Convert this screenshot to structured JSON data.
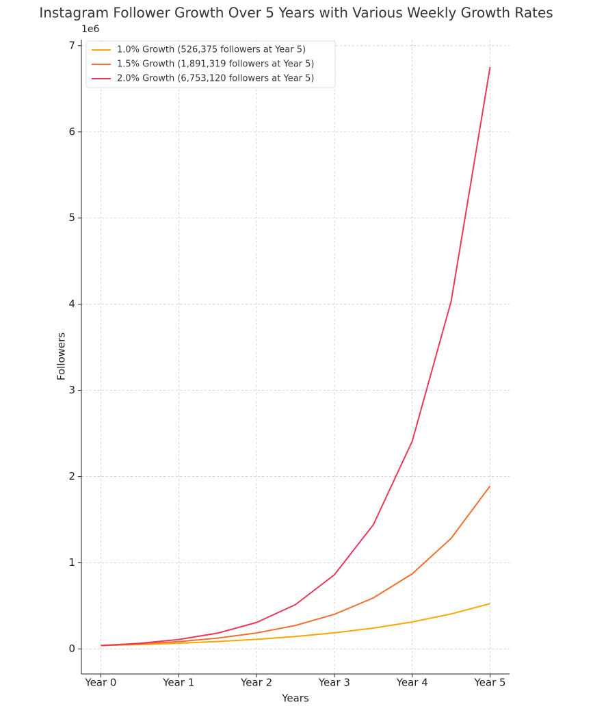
{
  "chart_data": {
    "type": "line",
    "title": "Instagram Follower Growth Over 5 Years with Various Weekly Growth Rates",
    "x_label": "Years",
    "y_label": "Followers",
    "y_offset_label": "1e6",
    "x": [
      0,
      0.5,
      1,
      1.5,
      2,
      2.5,
      3,
      3.5,
      4,
      4.5,
      5
    ],
    "series": [
      {
        "name": "1.0% Growth (526,375 followers at Year 5)",
        "color": "#ffa500",
        "values": [
          39600,
          51300,
          66400,
          86000,
          111500,
          144400,
          187000,
          242200,
          313700,
          406400,
          526375
        ]
      },
      {
        "name": "1.5% Growth (1,891,319 followers at Year 5)",
        "color": "#f07030",
        "values": [
          39400,
          58000,
          85500,
          125900,
          185400,
          273000,
          402100,
          592100,
          872000,
          1284300,
          1891319
        ]
      },
      {
        "name": "2.0% Growth (6,753,120 followers at Year 5)",
        "color": "#e8395a",
        "values": [
          39200,
          65600,
          109800,
          183700,
          307400,
          514500,
          861000,
          1440900,
          2411300,
          4035300,
          6753120
        ]
      }
    ],
    "xlim": [
      -0.25,
      5.25
    ],
    "xticks": [
      {
        "value": 0,
        "label": "Year 0"
      },
      {
        "value": 1,
        "label": "Year 1"
      },
      {
        "value": 2,
        "label": "Year 2"
      },
      {
        "value": 3,
        "label": "Year 3"
      },
      {
        "value": 4,
        "label": "Year 4"
      },
      {
        "value": 5,
        "label": "Year 5"
      }
    ],
    "ylim": [
      -290000,
      7070000
    ],
    "yticks": [
      0,
      {
        "value": 1000000,
        "label": "1"
      },
      {
        "value": 2000000,
        "label": "2"
      },
      {
        "value": 3000000,
        "label": "3"
      },
      {
        "value": 4000000,
        "label": "4"
      },
      {
        "value": 5000000,
        "label": "5"
      },
      {
        "value": 6000000,
        "label": "6"
      },
      {
        "value": 7000000,
        "label": "7"
      }
    ],
    "grid": true,
    "legend": "upper left"
  }
}
